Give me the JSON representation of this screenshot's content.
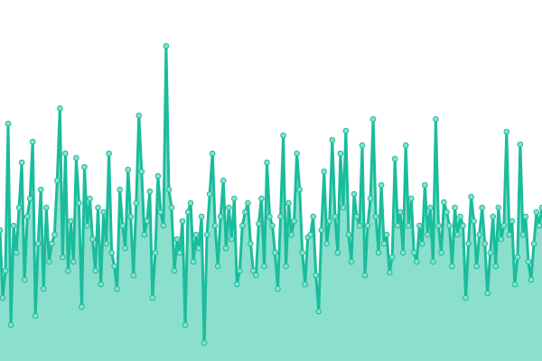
{
  "chart_data": {
    "type": "area",
    "title": "",
    "xlabel": "",
    "ylabel": "",
    "grid": false,
    "legend": "none",
    "ylim": [
      0,
      400
    ],
    "colors": {
      "line": "#1abc9c",
      "fill": "#8ae0cc",
      "point_fill": "#8ae0cc",
      "point_stroke": "#1abc9c"
    },
    "values": [
      145,
      70,
      100,
      263,
      40,
      150,
      120,
      170,
      220,
      90,
      160,
      180,
      243,
      50,
      130,
      190,
      80,
      170,
      110,
      130,
      140,
      200,
      280,
      115,
      230,
      100,
      155,
      110,
      225,
      175,
      60,
      215,
      150,
      180,
      135,
      100,
      170,
      85,
      165,
      130,
      230,
      120,
      105,
      80,
      190,
      150,
      125,
      212,
      160,
      95,
      175,
      272,
      210,
      140,
      155,
      188,
      70,
      120,
      205,
      165,
      150,
      349,
      190,
      170,
      100,
      135,
      120,
      155,
      40,
      165,
      175,
      110,
      140,
      125,
      160,
      20,
      140,
      185,
      230,
      150,
      105,
      160,
      200,
      125,
      170,
      135,
      180,
      85,
      100,
      150,
      165,
      175,
      130,
      100,
      95,
      152,
      180,
      105,
      220,
      160,
      150,
      120,
      80,
      160,
      250,
      105,
      175,
      140,
      155,
      230,
      190,
      120,
      85,
      137,
      140,
      160,
      95,
      55,
      145,
      210,
      130,
      155,
      245,
      160,
      120,
      230,
      170,
      255,
      140,
      110,
      185,
      160,
      150,
      239,
      95,
      150,
      180,
      268,
      160,
      120,
      195,
      130,
      140,
      98,
      115,
      224,
      150,
      165,
      120,
      239,
      150,
      180,
      120,
      110,
      150,
      130,
      195,
      140,
      170,
      110,
      268,
      150,
      120,
      176,
      165,
      150,
      105,
      170,
      140,
      160,
      150,
      70,
      130,
      182,
      155,
      105,
      140,
      170,
      130,
      75,
      120,
      160,
      105,
      170,
      135,
      150,
      254,
      140,
      155,
      85,
      115,
      240,
      140,
      160,
      110,
      90,
      130,
      165,
      150,
      170
    ]
  }
}
